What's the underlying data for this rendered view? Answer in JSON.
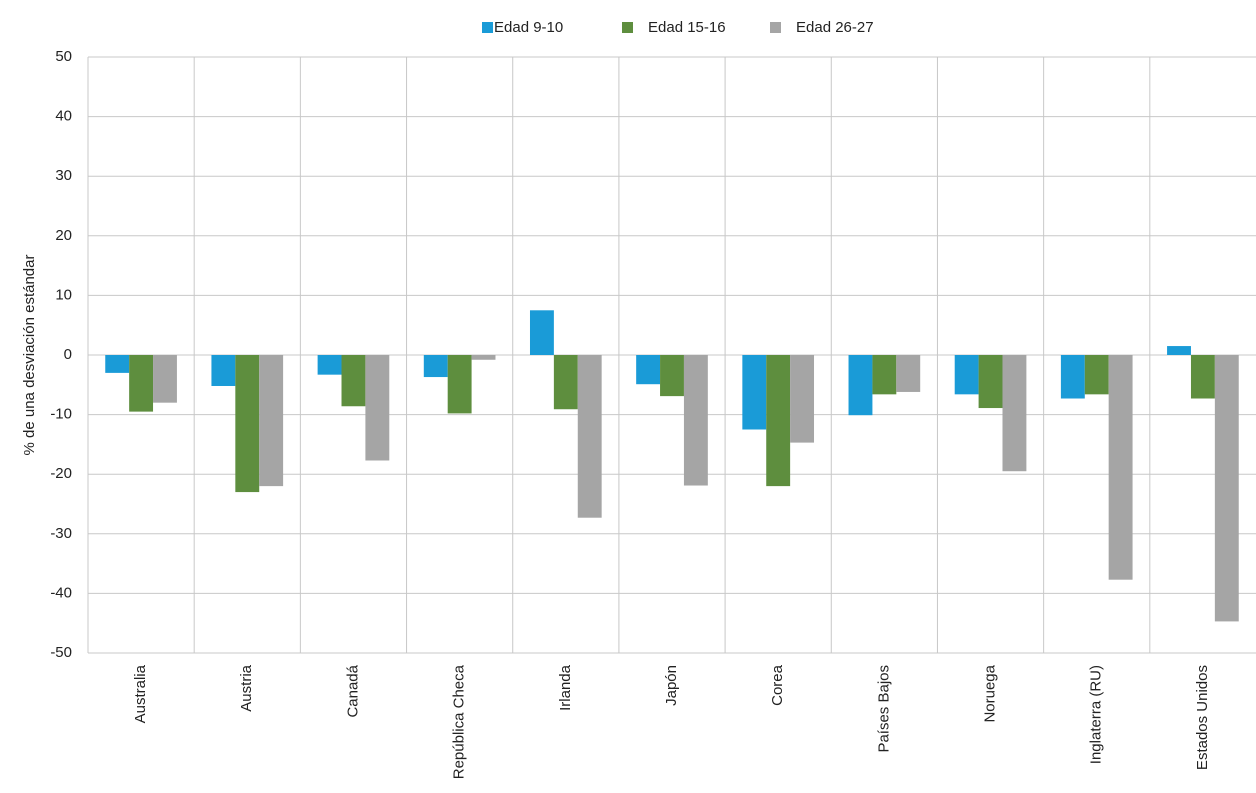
{
  "chart_data": {
    "type": "bar",
    "y_label": "% de una desviación estándar",
    "categories": [
      "Australia",
      "Austria",
      "Canadá",
      "República Checa",
      "Irlanda",
      "Japón",
      "Corea",
      "Países Bajos",
      "Noruega",
      "Inglaterra (RU)",
      "Estados Unidos"
    ],
    "series": [
      {
        "name": "Edad 9-10",
        "color": "#1a9bd7",
        "values": [
          -3,
          -5.2,
          -3.3,
          -3.7,
          7.5,
          -4.9,
          -12.5,
          -10.1,
          -6.6,
          -7.3,
          1.5
        ]
      },
      {
        "name": "Edad 15-16",
        "color": "#5e8e3e",
        "values": [
          -9.5,
          -23,
          -8.6,
          -9.8,
          -9.1,
          -6.9,
          -22,
          -6.6,
          -8.9,
          -6.6,
          -7.3
        ]
      },
      {
        "name": "Edad 26-27",
        "color": "#a5a5a5",
        "values": [
          -8,
          -22,
          -17.7,
          -0.8,
          -27.3,
          -21.9,
          -14.7,
          -6.2,
          -19.5,
          -37.7,
          -44.7
        ]
      }
    ],
    "ylim": [
      -50,
      50
    ],
    "yticks": [
      -50,
      -40,
      -30,
      -20,
      -10,
      0,
      10,
      20,
      30,
      40,
      50
    ],
    "grid": true,
    "legend": "top"
  }
}
